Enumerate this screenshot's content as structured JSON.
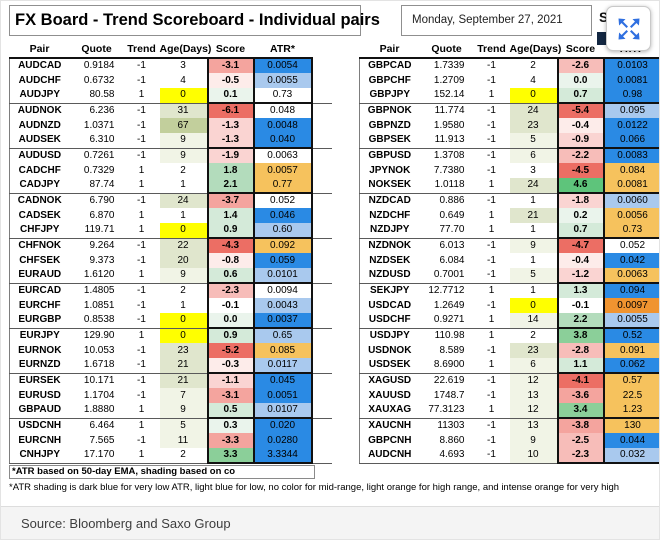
{
  "header": {
    "title": "FX Board - Trend Scoreboard - Individual pairs",
    "date": "Monday, September 27, 2021",
    "logo_fragment": "S"
  },
  "columns": [
    "Pair",
    "Quote",
    "Trend",
    "Age(Days)",
    "Score",
    "ATR*"
  ],
  "footnotes": {
    "line1": "*ATR based on 50-day EMA, shading based on co",
    "line2": "*ATR shading is dark blue for very low ATR, light blue for low, no color for mid-range, light orange for high range, and intense orange for very high"
  },
  "source": "Source: Bloomberg and Saxo Group",
  "colors": {
    "score": {
      "red": "#ec6e64",
      "pink3": "#f4a49e",
      "pink2": "#f7bdb9",
      "pink1": "#fad4d2",
      "pink0": "#fdecea",
      "white": "#ffffff",
      "green0": "#eaf4ec",
      "green1": "#d4ead9",
      "green2": "#b3dcbc",
      "green3": "#8bcf99",
      "green4": "#5ec47b"
    },
    "age": {
      "yellow": "#ffff00",
      "olive0": "#f1f4e6",
      "olive1": "#e0e6cd",
      "olive2": "#c2cf9c",
      "white": "#ffffff"
    },
    "atr": {
      "blue": "#2a8ae4",
      "lightblue": "#a9c9ee",
      "white": "#ffffff",
      "orange": "#f6c25d",
      "darkorange": "#f09430"
    }
  },
  "tables": {
    "left": [
      {
        "pair": "AUDCAD",
        "quote": "0.9184",
        "trend": "-1",
        "age": "3",
        "score": "-3.1",
        "atr": "0.0054",
        "score_c": "pink3",
        "age_c": "white",
        "atr_c": "blue"
      },
      {
        "pair": "AUDCHF",
        "quote": "0.6732",
        "trend": "-1",
        "age": "4",
        "score": "-0.5",
        "atr": "0.0055",
        "score_c": "pink0",
        "age_c": "white",
        "atr_c": "lightblue"
      },
      {
        "pair": "AUDJPY",
        "quote": "80.58",
        "trend": "1",
        "age": "0",
        "score": "0.1",
        "atr": "0.73",
        "score_c": "green0",
        "age_c": "yellow",
        "atr_c": "white"
      },
      {
        "pair": "AUDNOK",
        "quote": "6.236",
        "trend": "-1",
        "age": "31",
        "score": "-6.1",
        "atr": "0.048",
        "score_c": "red",
        "age_c": "olive1",
        "atr_c": "white"
      },
      {
        "pair": "AUDNZD",
        "quote": "1.0371",
        "trend": "-1",
        "age": "67",
        "score": "-1.3",
        "atr": "0.0048",
        "score_c": "pink1",
        "age_c": "olive2",
        "atr_c": "blue"
      },
      {
        "pair": "AUDSEK",
        "quote": "6.310",
        "trend": "-1",
        "age": "9",
        "score": "-1.3",
        "atr": "0.040",
        "score_c": "pink1",
        "age_c": "olive0",
        "atr_c": "blue"
      },
      {
        "pair": "AUDUSD",
        "quote": "0.7261",
        "trend": "-1",
        "age": "9",
        "score": "-1.9",
        "atr": "0.0063",
        "score_c": "pink1",
        "age_c": "olive0",
        "atr_c": "white"
      },
      {
        "pair": "CADCHF",
        "quote": "0.7329",
        "trend": "1",
        "age": "2",
        "score": "1.8",
        "atr": "0.0057",
        "score_c": "green2",
        "age_c": "white",
        "atr_c": "orange"
      },
      {
        "pair": "CADJPY",
        "quote": "87.74",
        "trend": "1",
        "age": "1",
        "score": "2.1",
        "atr": "0.77",
        "score_c": "green2",
        "age_c": "white",
        "atr_c": "orange"
      },
      {
        "pair": "CADNOK",
        "quote": "6.790",
        "trend": "-1",
        "age": "24",
        "score": "-3.7",
        "atr": "0.052",
        "score_c": "pink3",
        "age_c": "olive1",
        "atr_c": "white"
      },
      {
        "pair": "CADSEK",
        "quote": "6.870",
        "trend": "1",
        "age": "1",
        "score": "1.4",
        "atr": "0.046",
        "score_c": "green1",
        "age_c": "white",
        "atr_c": "blue"
      },
      {
        "pair": "CHFJPY",
        "quote": "119.71",
        "trend": "1",
        "age": "0",
        "score": "0.9",
        "atr": "0.60",
        "score_c": "green1",
        "age_c": "yellow",
        "atr_c": "lightblue"
      },
      {
        "pair": "CHFNOK",
        "quote": "9.264",
        "trend": "-1",
        "age": "22",
        "score": "-4.3",
        "atr": "0.092",
        "score_c": "red",
        "age_c": "olive1",
        "atr_c": "orange"
      },
      {
        "pair": "CHFSEK",
        "quote": "9.373",
        "trend": "-1",
        "age": "20",
        "score": "-0.8",
        "atr": "0.059",
        "score_c": "pink0",
        "age_c": "olive1",
        "atr_c": "blue"
      },
      {
        "pair": "EURAUD",
        "quote": "1.6120",
        "trend": "1",
        "age": "9",
        "score": "0.6",
        "atr": "0.0101",
        "score_c": "green1",
        "age_c": "olive0",
        "atr_c": "lightblue"
      },
      {
        "pair": "EURCAD",
        "quote": "1.4805",
        "trend": "-1",
        "age": "2",
        "score": "-2.3",
        "atr": "0.0094",
        "score_c": "pink2",
        "age_c": "white",
        "atr_c": "white"
      },
      {
        "pair": "EURCHF",
        "quote": "1.0851",
        "trend": "-1",
        "age": "1",
        "score": "-0.1",
        "atr": "0.0043",
        "score_c": "white",
        "age_c": "white",
        "atr_c": "lightblue"
      },
      {
        "pair": "EURGBP",
        "quote": "0.8538",
        "trend": "-1",
        "age": "0",
        "score": "0.0",
        "atr": "0.0037",
        "score_c": "green0",
        "age_c": "yellow",
        "atr_c": "blue"
      },
      {
        "pair": "EURJPY",
        "quote": "129.90",
        "trend": "1",
        "age": "0",
        "score": "0.9",
        "atr": "0.65",
        "score_c": "green1",
        "age_c": "yellow",
        "atr_c": "lightblue"
      },
      {
        "pair": "EURNOK",
        "quote": "10.053",
        "trend": "-1",
        "age": "23",
        "score": "-5.2",
        "atr": "0.085",
        "score_c": "red",
        "age_c": "olive1",
        "atr_c": "orange"
      },
      {
        "pair": "EURNZD",
        "quote": "1.6718",
        "trend": "-1",
        "age": "21",
        "score": "-0.3",
        "atr": "0.0117",
        "score_c": "pink0",
        "age_c": "olive1",
        "atr_c": "lightblue"
      },
      {
        "pair": "EURSEK",
        "quote": "10.171",
        "trend": "-1",
        "age": "21",
        "score": "-1.1",
        "atr": "0.045",
        "score_c": "pink1",
        "age_c": "olive1",
        "atr_c": "blue"
      },
      {
        "pair": "EURUSD",
        "quote": "1.1704",
        "trend": "-1",
        "age": "7",
        "score": "-3.1",
        "atr": "0.0051",
        "score_c": "pink3",
        "age_c": "olive0",
        "atr_c": "blue"
      },
      {
        "pair": "GBPAUD",
        "quote": "1.8880",
        "trend": "1",
        "age": "9",
        "score": "0.5",
        "atr": "0.0107",
        "score_c": "green1",
        "age_c": "olive0",
        "atr_c": "lightblue"
      },
      {
        "pair": "USDCNH",
        "quote": "6.464",
        "trend": "1",
        "age": "5",
        "score": "0.3",
        "atr": "0.020",
        "score_c": "green0",
        "age_c": "olive0",
        "atr_c": "blue"
      },
      {
        "pair": "EURCNH",
        "quote": "7.565",
        "trend": "-1",
        "age": "11",
        "score": "-3.3",
        "atr": "0.0280",
        "score_c": "pink3",
        "age_c": "olive0",
        "atr_c": "blue"
      },
      {
        "pair": "CNHJPY",
        "quote": "17.170",
        "trend": "1",
        "age": "2",
        "score": "3.3",
        "atr": "3.3344",
        "score_c": "green3",
        "age_c": "white",
        "atr_c": "blue"
      }
    ],
    "right": [
      {
        "pair": "GBPCAD",
        "quote": "1.7339",
        "trend": "-1",
        "age": "2",
        "score": "-2.6",
        "atr": "0.0103",
        "score_c": "pink2",
        "age_c": "white",
        "atr_c": "blue"
      },
      {
        "pair": "GBPCHF",
        "quote": "1.2709",
        "trend": "-1",
        "age": "4",
        "score": "0.0",
        "atr": "0.0081",
        "score_c": "green0",
        "age_c": "white",
        "atr_c": "blue"
      },
      {
        "pair": "GBPJPY",
        "quote": "152.14",
        "trend": "1",
        "age": "0",
        "score": "0.7",
        "atr": "0.98",
        "score_c": "green1",
        "age_c": "yellow",
        "atr_c": "blue"
      },
      {
        "pair": "GBPNOK",
        "quote": "11.774",
        "trend": "-1",
        "age": "24",
        "score": "-5.4",
        "atr": "0.095",
        "score_c": "red",
        "age_c": "olive1",
        "atr_c": "lightblue"
      },
      {
        "pair": "GBPNZD",
        "quote": "1.9580",
        "trend": "-1",
        "age": "23",
        "score": "-0.4",
        "atr": "0.0122",
        "score_c": "pink0",
        "age_c": "olive1",
        "atr_c": "blue"
      },
      {
        "pair": "GBPSEK",
        "quote": "11.913",
        "trend": "-1",
        "age": "5",
        "score": "-0.9",
        "atr": "0.066",
        "score_c": "pink1",
        "age_c": "olive0",
        "atr_c": "blue"
      },
      {
        "pair": "GBPUSD",
        "quote": "1.3708",
        "trend": "-1",
        "age": "6",
        "score": "-2.2",
        "atr": "0.0083",
        "score_c": "pink2",
        "age_c": "olive0",
        "atr_c": "blue"
      },
      {
        "pair": "JPYNOK",
        "quote": "7.7380",
        "trend": "-1",
        "age": "3",
        "score": "-4.5",
        "atr": "0.084",
        "score_c": "red",
        "age_c": "white",
        "atr_c": "orange"
      },
      {
        "pair": "NOKSEK",
        "quote": "1.0118",
        "trend": "1",
        "age": "24",
        "score": "4.6",
        "atr": "0.0081",
        "score_c": "green4",
        "age_c": "olive1",
        "atr_c": "orange"
      },
      {
        "pair": "NZDCAD",
        "quote": "0.886",
        "trend": "-1",
        "age": "1",
        "score": "-1.8",
        "atr": "0.0060",
        "score_c": "pink1",
        "age_c": "white",
        "atr_c": "lightblue"
      },
      {
        "pair": "NZDCHF",
        "quote": "0.649",
        "trend": "1",
        "age": "21",
        "score": "0.2",
        "atr": "0.0056",
        "score_c": "green0",
        "age_c": "olive1",
        "atr_c": "orange"
      },
      {
        "pair": "NZDJPY",
        "quote": "77.70",
        "trend": "1",
        "age": "1",
        "score": "0.7",
        "atr": "0.73",
        "score_c": "green1",
        "age_c": "white",
        "atr_c": "orange"
      },
      {
        "pair": "NZDNOK",
        "quote": "6.013",
        "trend": "-1",
        "age": "9",
        "score": "-4.7",
        "atr": "0.052",
        "score_c": "red",
        "age_c": "olive0",
        "atr_c": "white"
      },
      {
        "pair": "NZDSEK",
        "quote": "6.084",
        "trend": "-1",
        "age": "1",
        "score": "-0.4",
        "atr": "0.042",
        "score_c": "pink0",
        "age_c": "white",
        "atr_c": "blue"
      },
      {
        "pair": "NZDUSD",
        "quote": "0.7001",
        "trend": "-1",
        "age": "5",
        "score": "-1.2",
        "atr": "0.0063",
        "score_c": "pink1",
        "age_c": "olive0",
        "atr_c": "orange"
      },
      {
        "pair": "SEKJPY",
        "quote": "12.7712",
        "trend": "1",
        "age": "1",
        "score": "1.3",
        "atr": "0.094",
        "score_c": "green1",
        "age_c": "white",
        "atr_c": "blue"
      },
      {
        "pair": "USDCAD",
        "quote": "1.2649",
        "trend": "-1",
        "age": "0",
        "score": "-0.1",
        "atr": "0.0097",
        "score_c": "white",
        "age_c": "yellow",
        "atr_c": "darkorange"
      },
      {
        "pair": "USDCHF",
        "quote": "0.9271",
        "trend": "1",
        "age": "14",
        "score": "2.2",
        "atr": "0.0055",
        "score_c": "green2",
        "age_c": "olive0",
        "atr_c": "lightblue"
      },
      {
        "pair": "USDJPY",
        "quote": "110.98",
        "trend": "1",
        "age": "2",
        "score": "3.8",
        "atr": "0.52",
        "score_c": "green3",
        "age_c": "white",
        "atr_c": "blue"
      },
      {
        "pair": "USDNOK",
        "quote": "8.589",
        "trend": "-1",
        "age": "23",
        "score": "-2.8",
        "atr": "0.091",
        "score_c": "pink2",
        "age_c": "olive1",
        "atr_c": "orange"
      },
      {
        "pair": "USDSEK",
        "quote": "8.6900",
        "trend": "1",
        "age": "6",
        "score": "1.1",
        "atr": "0.062",
        "score_c": "green1",
        "age_c": "olive0",
        "atr_c": "blue"
      },
      {
        "pair": "XAGUSD",
        "quote": "22.619",
        "trend": "-1",
        "age": "12",
        "score": "-4.1",
        "atr": "0.57",
        "score_c": "red",
        "age_c": "olive0",
        "atr_c": "orange"
      },
      {
        "pair": "XAUUSD",
        "quote": "1748.7",
        "trend": "-1",
        "age": "13",
        "score": "-3.6",
        "atr": "22.5",
        "score_c": "pink3",
        "age_c": "olive0",
        "atr_c": "orange"
      },
      {
        "pair": "XAUXAG",
        "quote": "77.3123",
        "trend": "1",
        "age": "12",
        "score": "3.4",
        "atr": "1.23",
        "score_c": "green3",
        "age_c": "olive0",
        "atr_c": "orange"
      },
      {
        "pair": "XAUCNH",
        "quote": "11303",
        "trend": "-1",
        "age": "13",
        "score": "-3.8",
        "atr": "130",
        "score_c": "pink3",
        "age_c": "olive0",
        "atr_c": "orange"
      },
      {
        "pair": "GBPCNH",
        "quote": "8.860",
        "trend": "-1",
        "age": "9",
        "score": "-2.5",
        "atr": "0.044",
        "score_c": "pink2",
        "age_c": "olive0",
        "atr_c": "blue"
      },
      {
        "pair": "AUDCNH",
        "quote": "4.693",
        "trend": "-1",
        "age": "10",
        "score": "-2.3",
        "atr": "0.032",
        "score_c": "pink2",
        "age_c": "olive0",
        "atr_c": "lightblue"
      }
    ]
  }
}
